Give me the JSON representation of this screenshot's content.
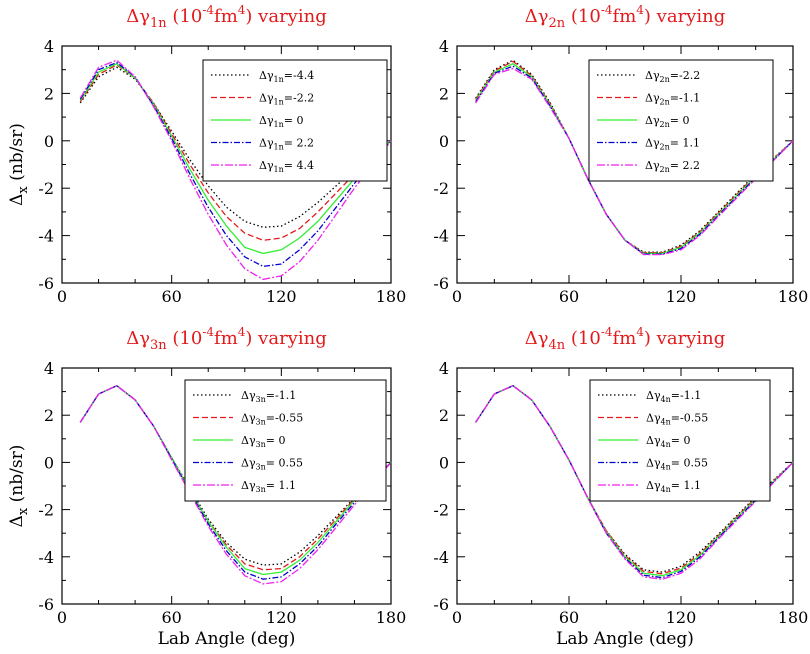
{
  "chart_data": [
    {
      "type": "line",
      "title": {
        "delta": "Δγ",
        "sub": "1n",
        "pre_unit": " (10",
        "exp1": "-4",
        "mid": "fm",
        "exp2": "4",
        "post": ") varying"
      },
      "xlabel": "",
      "ylabel": {
        "main": "Δ",
        "sub": "x",
        "rest": " (nb/sr)"
      },
      "xlim": [
        0,
        180
      ],
      "ylim": [
        -6,
        4
      ],
      "xticks": [
        0,
        60,
        120,
        180
      ],
      "yticks": [
        -6,
        -4,
        -2,
        0,
        2,
        4
      ],
      "x": [
        10,
        20,
        30,
        40,
        50,
        60,
        70,
        80,
        90,
        100,
        110,
        120,
        130,
        140,
        150,
        160,
        170,
        180
      ],
      "series": [
        {
          "name": {
            "pre": "Δγ",
            "sub": "1n",
            "post": "=-4.4"
          },
          "color": "#000000",
          "dash": "1.5,2.5",
          "values": [
            1.6,
            2.7,
            3.1,
            2.6,
            1.6,
            0.4,
            -0.8,
            -1.9,
            -2.8,
            -3.4,
            -3.65,
            -3.6,
            -3.2,
            -2.6,
            -1.9,
            -1.2,
            -0.6,
            0.0
          ]
        },
        {
          "name": {
            "pre": "Δγ",
            "sub": "1n",
            "post": "=-2.2"
          },
          "color": "#e31a1c",
          "dash": "6,3",
          "values": [
            1.65,
            2.8,
            3.2,
            2.65,
            1.6,
            0.3,
            -1.0,
            -2.2,
            -3.2,
            -3.9,
            -4.2,
            -4.1,
            -3.7,
            -3.0,
            -2.2,
            -1.4,
            -0.7,
            0.0
          ]
        },
        {
          "name": {
            "pre": "Δγ",
            "sub": "1n",
            "post": "= 0"
          },
          "color": "#33ee33",
          "dash": "",
          "values": [
            1.7,
            2.9,
            3.25,
            2.65,
            1.55,
            0.2,
            -1.2,
            -2.5,
            -3.6,
            -4.5,
            -4.75,
            -4.6,
            -4.1,
            -3.4,
            -2.5,
            -1.6,
            -0.8,
            0.0
          ]
        },
        {
          "name": {
            "pre": "Δγ",
            "sub": "1n",
            "post": "= 2.2"
          },
          "color": "#0000cc",
          "dash": "6,2,1.5,2",
          "values": [
            1.75,
            3.0,
            3.3,
            2.7,
            1.5,
            0.1,
            -1.4,
            -2.8,
            -4.0,
            -4.9,
            -5.3,
            -5.2,
            -4.6,
            -3.8,
            -2.8,
            -1.8,
            -0.9,
            0.0
          ]
        },
        {
          "name": {
            "pre": "Δγ",
            "sub": "1n",
            "post": "= 4.4"
          },
          "color": "#ee22ee",
          "dash": "8,2,2,2",
          "values": [
            1.8,
            3.1,
            3.4,
            2.7,
            1.45,
            0.0,
            -1.6,
            -3.1,
            -4.4,
            -5.4,
            -5.85,
            -5.7,
            -5.1,
            -4.2,
            -3.1,
            -2.0,
            -1.0,
            0.0
          ]
        }
      ]
    },
    {
      "type": "line",
      "title": {
        "delta": "Δγ",
        "sub": "2n",
        "pre_unit": " (10",
        "exp1": "-4",
        "mid": "fm",
        "exp2": "4",
        "post": ") varying"
      },
      "xlabel": "",
      "ylabel": "",
      "xlim": [
        0,
        180
      ],
      "ylim": [
        -6,
        4
      ],
      "xticks": [
        0,
        60,
        120,
        180
      ],
      "yticks": [
        -6,
        -4,
        -2,
        0,
        2,
        4
      ],
      "x": [
        10,
        20,
        30,
        40,
        50,
        60,
        70,
        80,
        90,
        100,
        110,
        120,
        130,
        140,
        150,
        160,
        170,
        180
      ],
      "series": [
        {
          "name": {
            "pre": "Δγ",
            "sub": "2n",
            "post": "=-2.2"
          },
          "color": "#000000",
          "dash": "1.5,2.5",
          "values": [
            1.8,
            3.0,
            3.4,
            2.8,
            1.6,
            0.1,
            -1.6,
            -3.1,
            -4.2,
            -4.7,
            -4.7,
            -4.4,
            -3.8,
            -3.0,
            -2.2,
            -1.4,
            -0.7,
            0.0
          ]
        },
        {
          "name": {
            "pre": "Δγ",
            "sub": "2n",
            "post": "=-1.1"
          },
          "color": "#e31a1c",
          "dash": "6,3",
          "values": [
            1.75,
            2.95,
            3.35,
            2.75,
            1.55,
            0.1,
            -1.6,
            -3.1,
            -4.2,
            -4.72,
            -4.72,
            -4.45,
            -3.85,
            -3.05,
            -2.25,
            -1.45,
            -0.72,
            0.0
          ]
        },
        {
          "name": {
            "pre": "Δγ",
            "sub": "2n",
            "post": "= 0"
          },
          "color": "#33ee33",
          "dash": "",
          "values": [
            1.7,
            2.9,
            3.25,
            2.7,
            1.5,
            0.1,
            -1.6,
            -3.1,
            -4.2,
            -4.75,
            -4.75,
            -4.5,
            -3.9,
            -3.1,
            -2.3,
            -1.5,
            -0.75,
            0.0
          ]
        },
        {
          "name": {
            "pre": "Δγ",
            "sub": "2n",
            "post": "= 1.1"
          },
          "color": "#0000cc",
          "dash": "6,2,1.5,2",
          "values": [
            1.65,
            2.85,
            3.15,
            2.65,
            1.45,
            0.1,
            -1.6,
            -3.1,
            -4.2,
            -4.78,
            -4.78,
            -4.55,
            -3.95,
            -3.15,
            -2.35,
            -1.55,
            -0.78,
            0.0
          ]
        },
        {
          "name": {
            "pre": "Δγ",
            "sub": "2n",
            "post": "= 2.2"
          },
          "color": "#ee22ee",
          "dash": "8,2,2,2",
          "values": [
            1.6,
            2.8,
            3.05,
            2.6,
            1.4,
            0.1,
            -1.6,
            -3.1,
            -4.2,
            -4.8,
            -4.8,
            -4.6,
            -4.0,
            -3.2,
            -2.4,
            -1.6,
            -0.8,
            0.0
          ]
        }
      ]
    },
    {
      "type": "line",
      "title": {
        "delta": "Δγ",
        "sub": "3n",
        "pre_unit": " (10",
        "exp1": "-4",
        "mid": "fm",
        "exp2": "4",
        "post": ") varying"
      },
      "xlabel": "Lab Angle (deg)",
      "ylabel": {
        "main": "Δ",
        "sub": "x",
        "rest": " (nb/sr)"
      },
      "xlim": [
        0,
        180
      ],
      "ylim": [
        -6,
        4
      ],
      "xticks": [
        0,
        60,
        120,
        180
      ],
      "yticks": [
        -6,
        -4,
        -2,
        0,
        2,
        4
      ],
      "x": [
        10,
        20,
        30,
        40,
        50,
        60,
        70,
        80,
        90,
        100,
        110,
        120,
        130,
        140,
        150,
        160,
        170,
        180
      ],
      "series": [
        {
          "name": {
            "pre": "Δγ",
            "sub": "3n",
            "post": "=-1.1"
          },
          "color": "#000000",
          "dash": "1.5,2.5",
          "values": [
            1.7,
            2.9,
            3.25,
            2.65,
            1.55,
            0.2,
            -1.1,
            -2.4,
            -3.4,
            -4.1,
            -4.35,
            -4.3,
            -3.8,
            -3.1,
            -2.3,
            -1.5,
            -0.75,
            0.0
          ]
        },
        {
          "name": {
            "pre": "Δγ",
            "sub": "3n",
            "post": "=-0.55"
          },
          "color": "#e31a1c",
          "dash": "6,3",
          "values": [
            1.7,
            2.9,
            3.25,
            2.65,
            1.55,
            0.2,
            -1.2,
            -2.5,
            -3.5,
            -4.3,
            -4.55,
            -4.5,
            -4.0,
            -3.25,
            -2.4,
            -1.55,
            -0.78,
            0.0
          ]
        },
        {
          "name": {
            "pre": "Δγ",
            "sub": "3n",
            "post": "= 0"
          },
          "color": "#33ee33",
          "dash": "",
          "values": [
            1.7,
            2.9,
            3.25,
            2.65,
            1.55,
            0.2,
            -1.2,
            -2.5,
            -3.6,
            -4.5,
            -4.75,
            -4.65,
            -4.15,
            -3.4,
            -2.5,
            -1.6,
            -0.8,
            0.0
          ]
        },
        {
          "name": {
            "pre": "Δγ",
            "sub": "3n",
            "post": "= 0.55"
          },
          "color": "#0000cc",
          "dash": "6,2,1.5,2",
          "values": [
            1.7,
            2.9,
            3.25,
            2.65,
            1.55,
            0.15,
            -1.25,
            -2.6,
            -3.75,
            -4.65,
            -4.95,
            -4.85,
            -4.3,
            -3.55,
            -2.6,
            -1.7,
            -0.85,
            0.0
          ]
        },
        {
          "name": {
            "pre": "Δγ",
            "sub": "3n",
            "post": "= 1.1"
          },
          "color": "#ee22ee",
          "dash": "8,2,2,2",
          "values": [
            1.7,
            2.9,
            3.25,
            2.65,
            1.55,
            0.1,
            -1.3,
            -2.7,
            -3.9,
            -4.8,
            -5.15,
            -5.05,
            -4.5,
            -3.7,
            -2.75,
            -1.8,
            -0.9,
            0.0
          ]
        }
      ]
    },
    {
      "type": "line",
      "title": {
        "delta": "Δγ",
        "sub": "4n",
        "pre_unit": " (10",
        "exp1": "-4",
        "mid": "fm",
        "exp2": "4",
        "post": ") varying"
      },
      "xlabel": "Lab Angle (deg)",
      "ylabel": "",
      "xlim": [
        0,
        180
      ],
      "ylim": [
        -6,
        4
      ],
      "xticks": [
        0,
        60,
        120,
        180
      ],
      "yticks": [
        -6,
        -4,
        -2,
        0,
        2,
        4
      ],
      "x": [
        10,
        20,
        30,
        40,
        50,
        60,
        70,
        80,
        90,
        100,
        110,
        120,
        130,
        140,
        150,
        160,
        170,
        180
      ],
      "series": [
        {
          "name": {
            "pre": "Δγ",
            "sub": "4n",
            "post": "=-1.1"
          },
          "color": "#000000",
          "dash": "1.5,2.5",
          "values": [
            1.7,
            2.9,
            3.25,
            2.65,
            1.5,
            0.1,
            -1.5,
            -2.9,
            -3.9,
            -4.55,
            -4.65,
            -4.4,
            -3.8,
            -3.05,
            -2.25,
            -1.45,
            -0.72,
            0.0
          ]
        },
        {
          "name": {
            "pre": "Δγ",
            "sub": "4n",
            "post": "=-0.55"
          },
          "color": "#e31a1c",
          "dash": "6,3",
          "values": [
            1.7,
            2.9,
            3.25,
            2.65,
            1.5,
            0.1,
            -1.5,
            -2.9,
            -3.95,
            -4.62,
            -4.72,
            -4.48,
            -3.88,
            -3.1,
            -2.3,
            -1.5,
            -0.75,
            0.0
          ]
        },
        {
          "name": {
            "pre": "Δγ",
            "sub": "4n",
            "post": "= 0"
          },
          "color": "#33ee33",
          "dash": "",
          "values": [
            1.7,
            2.9,
            3.25,
            2.65,
            1.5,
            0.1,
            -1.5,
            -2.95,
            -4.0,
            -4.7,
            -4.8,
            -4.55,
            -3.95,
            -3.15,
            -2.35,
            -1.55,
            -0.78,
            0.0
          ]
        },
        {
          "name": {
            "pre": "Δγ",
            "sub": "4n",
            "post": "= 0.55"
          },
          "color": "#0000cc",
          "dash": "6,2,1.5,2",
          "values": [
            1.7,
            2.9,
            3.25,
            2.65,
            1.5,
            0.1,
            -1.5,
            -3.0,
            -4.05,
            -4.78,
            -4.88,
            -4.62,
            -4.02,
            -3.2,
            -2.4,
            -1.6,
            -0.8,
            0.0
          ]
        },
        {
          "name": {
            "pre": "Δγ",
            "sub": "4n",
            "post": "= 1.1"
          },
          "color": "#ee22ee",
          "dash": "8,2,2,2",
          "values": [
            1.7,
            2.9,
            3.25,
            2.65,
            1.5,
            0.1,
            -1.5,
            -3.0,
            -4.1,
            -4.85,
            -4.95,
            -4.7,
            -4.1,
            -3.25,
            -2.45,
            -1.65,
            -0.82,
            0.0
          ]
        }
      ]
    }
  ]
}
